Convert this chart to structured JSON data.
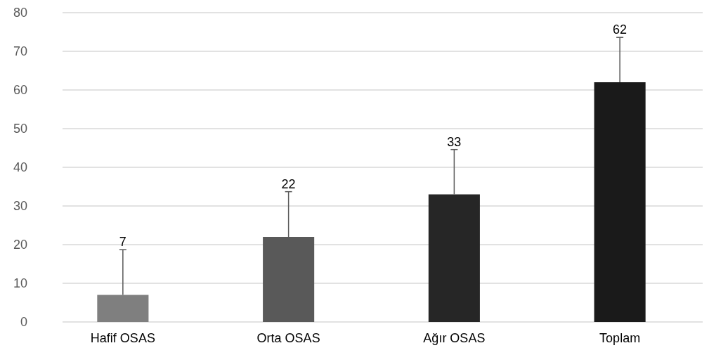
{
  "chart_data": {
    "type": "bar",
    "categories": [
      "Hafif OSAS",
      "Orta OSAS",
      "Ağır OSAS",
      "Toplam"
    ],
    "values": [
      7,
      22,
      33,
      62
    ],
    "colors": [
      "#7f7f7f",
      "#595959",
      "#262626",
      "#1a1a1a"
    ],
    "errors": [
      [
        7,
        18.7
      ],
      [
        22,
        33.7
      ],
      [
        33,
        44.6
      ],
      [
        62,
        73.6
      ]
    ],
    "ylim": [
      0,
      80
    ],
    "yticks": [
      0,
      10,
      20,
      30,
      40,
      50,
      60,
      70,
      80
    ],
    "grid": "y",
    "annotations": [
      {
        "text": "7",
        "x": "Hafif OSAS",
        "y": 18.7
      },
      {
        "text": "22",
        "x": "Orta OSAS",
        "y": 33.7
      },
      {
        "text": "33",
        "x": "Ağır OSAS",
        "y": 44.6
      },
      {
        "text": "62",
        "x": "Toplam",
        "y": 73.6
      }
    ]
  }
}
